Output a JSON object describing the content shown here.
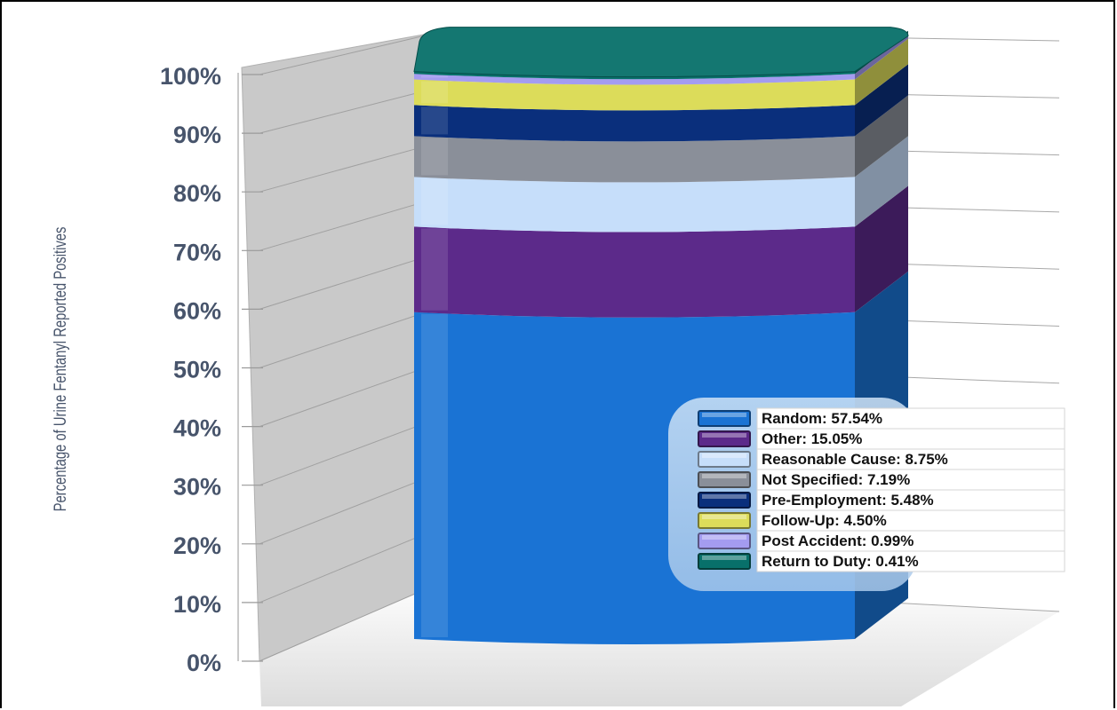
{
  "chart_data": {
    "type": "bar",
    "stacked": true,
    "three_d": true,
    "ylabel": "Percentage of Urine Fentanyl Reported Positives",
    "y_tick_labels": [
      "0%",
      "10%",
      "20%",
      "30%",
      "40%",
      "50%",
      "60%",
      "70%",
      "80%",
      "90%",
      "100%"
    ],
    "ylim": [
      0,
      100
    ],
    "grid": true,
    "legend_position": "bottom-right",
    "series": [
      {
        "name": "Random",
        "value": 57.54,
        "label": "Random:  57.54%",
        "color": "#1a73d4"
      },
      {
        "name": "Other",
        "value": 15.05,
        "label": "Other:  15.05%",
        "color": "#5c2a8a"
      },
      {
        "name": "Reasonable Cause",
        "value": 8.75,
        "label": "Reasonable Cause:  8.75%",
        "color": "#c6defa"
      },
      {
        "name": "Not Specified",
        "value": 7.19,
        "label": "Not Specified:  7.19%",
        "color": "#8a8f99"
      },
      {
        "name": "Pre-Employment",
        "value": 5.48,
        "label": "Pre-Employment:  5.48%",
        "color": "#0a2f7c"
      },
      {
        "name": "Follow-Up",
        "value": 4.5,
        "label": "Follow-Up:  4.50%",
        "color": "#dcdc5a"
      },
      {
        "name": "Post Accident",
        "value": 0.99,
        "label": "Post Accident:  0.99%",
        "color": "#a49cf0"
      },
      {
        "name": "Return to Duty",
        "value": 0.41,
        "label": "Return to Duty:  0.41%",
        "color": "#08706a"
      }
    ]
  }
}
